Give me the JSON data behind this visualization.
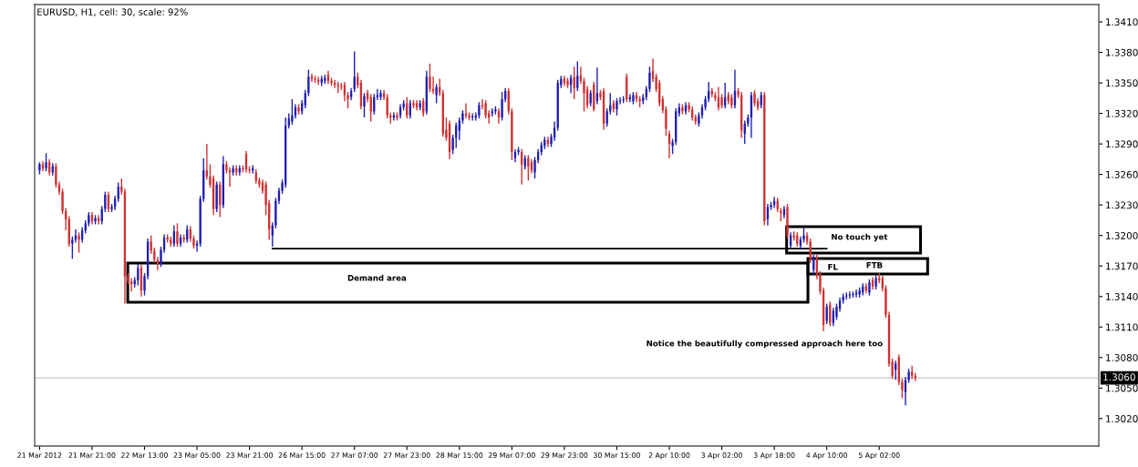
{
  "chart_data": {
    "type": "candlestick",
    "title": "EURUSD, H1, cell: 30, scale: 92%",
    "categories": [
      "21 Mar 2012",
      null,
      null,
      null,
      null,
      null,
      null,
      null,
      null,
      null,
      null,
      null,
      null,
      null,
      null,
      null,
      "21 Mar 21:00",
      null,
      null,
      null,
      null,
      null,
      null,
      null,
      null,
      null,
      null,
      null,
      null,
      null,
      null,
      null,
      "22 Mar 13:00",
      null,
      null,
      null,
      null,
      null,
      null,
      null,
      null,
      null,
      null,
      null,
      null,
      null,
      null,
      null,
      "23 Mar 05:00",
      null,
      null,
      null,
      null,
      null,
      null,
      null,
      null,
      null,
      null,
      null,
      null,
      null,
      null,
      null,
      "23 Mar 21:00",
      null,
      null,
      null,
      null,
      null,
      null,
      null,
      null,
      null,
      null,
      null,
      null,
      null,
      null,
      null,
      "26 Mar 15:00",
      null,
      null,
      null,
      null,
      null,
      null,
      null,
      null,
      null,
      null,
      null,
      null,
      null,
      null,
      null,
      "27 Mar 07:00",
      null,
      null,
      null,
      null,
      null,
      null,
      null,
      null,
      null,
      null,
      null,
      null,
      null,
      null,
      null,
      "27 Mar 23:00",
      null,
      null,
      null,
      null,
      null,
      null,
      null,
      null,
      null,
      null,
      null,
      null,
      null,
      null,
      null,
      "28 Mar 15:00",
      null,
      null,
      null,
      null,
      null,
      null,
      null,
      null,
      null,
      null,
      null,
      null,
      null,
      null,
      null,
      "29 Mar 07:00",
      null,
      null,
      null,
      null,
      null,
      null,
      null,
      null,
      null,
      null,
      null,
      null,
      null,
      null,
      null,
      "29 Mar 23:00",
      null,
      null,
      null,
      null,
      null,
      null,
      null,
      null,
      null,
      null,
      null,
      null,
      null,
      null,
      null,
      "30 Mar 15:00",
      null,
      null,
      null,
      null,
      null,
      null,
      null,
      null,
      null,
      null,
      null,
      null,
      null,
      null,
      null,
      "2 Apr 10:00",
      null,
      null,
      null,
      null,
      null,
      null,
      null,
      null,
      null,
      null,
      null,
      null,
      null,
      null,
      null,
      "3 Apr 02:00",
      null,
      null,
      null,
      null,
      null,
      null,
      null,
      null,
      null,
      null,
      null,
      null,
      null,
      null,
      null,
      "3 Apr 18:00",
      null,
      null,
      null,
      null,
      null,
      null,
      null,
      null,
      null,
      null,
      null,
      null,
      null,
      null,
      null,
      "4 Apr 10:00",
      null,
      null,
      null,
      null,
      null,
      null,
      null,
      null,
      null,
      null,
      null,
      null,
      null,
      null,
      null,
      "5 Apr 02:00",
      null,
      null,
      null,
      null,
      null,
      null,
      null,
      null,
      null,
      null,
      null
    ],
    "ohlc": [
      [
        1.3264,
        1.3272,
        1.326,
        1.327
      ],
      [
        1.327,
        1.3273,
        1.3263,
        1.3266
      ],
      [
        1.3266,
        1.3281,
        1.3263,
        1.3272
      ],
      [
        1.3272,
        1.3275,
        1.3259,
        1.3262
      ],
      [
        1.3262,
        1.3271,
        1.3259,
        1.3268
      ],
      [
        1.3268,
        1.3271,
        1.3247,
        1.325
      ],
      [
        1.325,
        1.3253,
        1.324,
        1.3243
      ],
      [
        1.3243,
        1.3246,
        1.3221,
        1.3224
      ],
      [
        1.3224,
        1.3227,
        1.3205,
        1.3216
      ],
      [
        1.3216,
        1.3219,
        1.3189,
        1.3192
      ],
      [
        1.3192,
        1.3199,
        1.3177,
        1.3196
      ],
      [
        1.3196,
        1.3206,
        1.3193,
        1.32
      ],
      [
        1.32,
        1.3203,
        1.3183,
        1.3196
      ],
      [
        1.3196,
        1.3208,
        1.3193,
        1.3205
      ],
      [
        1.3205,
        1.3215,
        1.3202,
        1.3212
      ],
      [
        1.3212,
        1.3223,
        1.3209,
        1.322
      ],
      [
        1.322,
        1.3223,
        1.3211,
        1.3214
      ],
      [
        1.3214,
        1.322,
        1.3211,
        1.3217
      ],
      [
        1.3217,
        1.322,
        1.3211,
        1.3214
      ],
      [
        1.3214,
        1.3229,
        1.3211,
        1.3226
      ],
      [
        1.3226,
        1.3243,
        1.3223,
        1.324
      ],
      [
        1.324,
        1.3243,
        1.3223,
        1.3226
      ],
      [
        1.3226,
        1.3231,
        1.3223,
        1.3228
      ],
      [
        1.3228,
        1.3239,
        1.3225,
        1.3236
      ],
      [
        1.3236,
        1.3252,
        1.3233,
        1.3248
      ],
      [
        1.3248,
        1.3256,
        1.324,
        1.3243
      ],
      [
        1.3243,
        1.3246,
        1.3133,
        1.316
      ],
      [
        1.316,
        1.3163,
        1.3152,
        1.3155
      ],
      [
        1.3155,
        1.3158,
        1.3145,
        1.3152
      ],
      [
        1.3152,
        1.3159,
        1.3149,
        1.3156
      ],
      [
        1.3156,
        1.3172,
        1.3151,
        1.3168
      ],
      [
        1.3168,
        1.3171,
        1.314,
        1.3146
      ],
      [
        1.3146,
        1.3163,
        1.3141,
        1.316
      ],
      [
        1.316,
        1.3197,
        1.3157,
        1.3194
      ],
      [
        1.3194,
        1.32,
        1.3182,
        1.3185
      ],
      [
        1.3185,
        1.3188,
        1.3173,
        1.3176
      ],
      [
        1.3176,
        1.3179,
        1.3166,
        1.3172
      ],
      [
        1.3172,
        1.3189,
        1.3169,
        1.3186
      ],
      [
        1.3186,
        1.3201,
        1.3183,
        1.3198
      ],
      [
        1.3198,
        1.3201,
        1.3193,
        1.3196
      ],
      [
        1.3196,
        1.3199,
        1.3189,
        1.3192
      ],
      [
        1.3192,
        1.321,
        1.3189,
        1.3204
      ],
      [
        1.3204,
        1.3212,
        1.3189,
        1.3192
      ],
      [
        1.3192,
        1.3201,
        1.3189,
        1.3198
      ],
      [
        1.3198,
        1.3201,
        1.3193,
        1.3196
      ],
      [
        1.3196,
        1.321,
        1.3193,
        1.3206
      ],
      [
        1.3206,
        1.3209,
        1.3194,
        1.3197
      ],
      [
        1.3197,
        1.32,
        1.3187,
        1.319
      ],
      [
        1.319,
        1.3195,
        1.3184,
        1.3192
      ],
      [
        1.3192,
        1.3239,
        1.3189,
        1.3236
      ],
      [
        1.3236,
        1.3276,
        1.3233,
        1.3264
      ],
      [
        1.3264,
        1.329,
        1.3255,
        1.3258
      ],
      [
        1.3258,
        1.327,
        1.3247,
        1.325
      ],
      [
        1.3256,
        1.3259,
        1.322,
        1.3226
      ],
      [
        1.3226,
        1.3253,
        1.3223,
        1.325
      ],
      [
        1.325,
        1.3253,
        1.3218,
        1.323
      ],
      [
        1.323,
        1.3278,
        1.3227,
        1.327
      ],
      [
        1.327,
        1.3273,
        1.3261,
        1.3264
      ],
      [
        1.3264,
        1.3267,
        1.3248,
        1.3262
      ],
      [
        1.3262,
        1.3269,
        1.3259,
        1.3266
      ],
      [
        1.3266,
        1.3269,
        1.3259,
        1.3262
      ],
      [
        1.3262,
        1.3269,
        1.3259,
        1.3266
      ],
      [
        1.3266,
        1.3269,
        1.3262,
        1.3265
      ],
      [
        1.328,
        1.3283,
        1.3262,
        1.3265
      ],
      [
        1.3265,
        1.3268,
        1.3261,
        1.3264
      ],
      [
        1.3264,
        1.3269,
        1.3261,
        1.3266
      ],
      [
        1.3262,
        1.3265,
        1.3251,
        1.3254
      ],
      [
        1.3254,
        1.3257,
        1.3247,
        1.325
      ],
      [
        1.3252,
        1.3255,
        1.3241,
        1.3244
      ],
      [
        1.325,
        1.3253,
        1.322,
        1.323
      ],
      [
        1.3232,
        1.3235,
        1.3196,
        1.3206
      ],
      [
        1.32,
        1.3213,
        1.3189,
        1.321
      ],
      [
        1.321,
        1.3237,
        1.3207,
        1.3234
      ],
      [
        1.3234,
        1.3247,
        1.3231,
        1.3244
      ],
      [
        1.3244,
        1.3255,
        1.3241,
        1.3252
      ],
      [
        1.325,
        1.3316,
        1.3247,
        1.3308
      ],
      [
        1.3308,
        1.332,
        1.3305,
        1.3315
      ],
      [
        1.3312,
        1.3334,
        1.3309,
        1.3318
      ],
      [
        1.3318,
        1.3329,
        1.3315,
        1.3326
      ],
      [
        1.3326,
        1.3329,
        1.3319,
        1.3322
      ],
      [
        1.3322,
        1.3333,
        1.3319,
        1.333
      ],
      [
        1.3328,
        1.3343,
        1.3325,
        1.334
      ],
      [
        1.334,
        1.3363,
        1.3337,
        1.3356
      ],
      [
        1.3356,
        1.3359,
        1.3351,
        1.3354
      ],
      [
        1.3354,
        1.3357,
        1.335,
        1.3353
      ],
      [
        1.3353,
        1.3356,
        1.3348,
        1.3351
      ],
      [
        1.335,
        1.3357,
        1.3347,
        1.3354
      ],
      [
        1.3352,
        1.3358,
        1.3349,
        1.3355
      ],
      [
        1.3358,
        1.3362,
        1.3349,
        1.3352
      ],
      [
        1.3352,
        1.3355,
        1.3347,
        1.335
      ],
      [
        1.335,
        1.3353,
        1.3345,
        1.3348
      ],
      [
        1.3348,
        1.3351,
        1.334,
        1.3347
      ],
      [
        1.3347,
        1.335,
        1.3343,
        1.3346
      ],
      [
        1.3348,
        1.3351,
        1.3332,
        1.3338
      ],
      [
        1.3338,
        1.3341,
        1.3325,
        1.3334
      ],
      [
        1.3336,
        1.3345,
        1.3333,
        1.3342
      ],
      [
        1.3344,
        1.3381,
        1.3341,
        1.3356
      ],
      [
        1.3356,
        1.336,
        1.3345,
        1.3348
      ],
      [
        1.335,
        1.3353,
        1.3324,
        1.3327
      ],
      [
        1.3327,
        1.334,
        1.3316,
        1.3337
      ],
      [
        1.334,
        1.3343,
        1.3331,
        1.3334
      ],
      [
        1.3336,
        1.3339,
        1.3312,
        1.3322
      ],
      [
        1.3322,
        1.3339,
        1.3319,
        1.3336
      ],
      [
        1.3336,
        1.3344,
        1.3333,
        1.3338
      ],
      [
        1.3336,
        1.3343,
        1.3333,
        1.334
      ],
      [
        1.334,
        1.3343,
        1.3333,
        1.3336
      ],
      [
        1.3336,
        1.3339,
        1.3315,
        1.3318
      ],
      [
        1.3318,
        1.3321,
        1.331,
        1.3316
      ],
      [
        1.3316,
        1.3321,
        1.3313,
        1.3318
      ],
      [
        1.3318,
        1.3321,
        1.3313,
        1.3316
      ],
      [
        1.3318,
        1.3329,
        1.3315,
        1.3326
      ],
      [
        1.3326,
        1.3333,
        1.3323,
        1.333
      ],
      [
        1.333,
        1.3336,
        1.3315,
        1.3318
      ],
      [
        1.3318,
        1.3333,
        1.3315,
        1.333
      ],
      [
        1.333,
        1.3333,
        1.3325,
        1.3328
      ],
      [
        1.333,
        1.3333,
        1.3323,
        1.3326
      ],
      [
        1.3326,
        1.3333,
        1.3323,
        1.333
      ],
      [
        1.3332,
        1.3335,
        1.3317,
        1.332
      ],
      [
        1.3322,
        1.3362,
        1.3319,
        1.3356
      ],
      [
        1.3356,
        1.3369,
        1.3341,
        1.3344
      ],
      [
        1.3344,
        1.3356,
        1.3339,
        1.3342
      ],
      [
        1.3338,
        1.3349,
        1.333,
        1.3346
      ],
      [
        1.3346,
        1.3354,
        1.3337,
        1.334
      ],
      [
        1.334,
        1.3343,
        1.3297,
        1.33
      ],
      [
        1.3304,
        1.3316,
        1.3293,
        1.3296
      ],
      [
        1.331,
        1.3313,
        1.3275,
        1.3282
      ],
      [
        1.3284,
        1.3299,
        1.328,
        1.3296
      ],
      [
        1.3296,
        1.3311,
        1.3286,
        1.3308
      ],
      [
        1.3303,
        1.3316,
        1.3294,
        1.3313
      ],
      [
        1.3313,
        1.3323,
        1.331,
        1.332
      ],
      [
        1.332,
        1.333,
        1.3315,
        1.3318
      ],
      [
        1.3318,
        1.3321,
        1.3313,
        1.3316
      ],
      [
        1.3316,
        1.332,
        1.3313,
        1.3317
      ],
      [
        1.3316,
        1.3321,
        1.3313,
        1.3318
      ],
      [
        1.3318,
        1.3331,
        1.3315,
        1.3328
      ],
      [
        1.3328,
        1.3334,
        1.3324,
        1.3327
      ],
      [
        1.333,
        1.3333,
        1.3315,
        1.3318
      ],
      [
        1.332,
        1.3323,
        1.331,
        1.3316
      ],
      [
        1.332,
        1.3325,
        1.3317,
        1.3322
      ],
      [
        1.3322,
        1.3327,
        1.3319,
        1.3324
      ],
      [
        1.3322,
        1.3325,
        1.331,
        1.3316
      ],
      [
        1.3316,
        1.3341,
        1.3313,
        1.3334
      ],
      [
        1.3334,
        1.3345,
        1.3331,
        1.3342
      ],
      [
        1.3342,
        1.3345,
        1.3319,
        1.3322
      ],
      [
        1.3322,
        1.3325,
        1.3274,
        1.3282
      ],
      [
        1.3276,
        1.3285,
        1.3272,
        1.3282
      ],
      [
        1.3282,
        1.3287,
        1.3279,
        1.3284
      ],
      [
        1.3282,
        1.3285,
        1.325,
        1.327
      ],
      [
        1.3268,
        1.3279,
        1.3265,
        1.3276
      ],
      [
        1.3276,
        1.3279,
        1.3254,
        1.3268
      ],
      [
        1.3272,
        1.3275,
        1.3261,
        1.3264
      ],
      [
        1.3262,
        1.3277,
        1.3256,
        1.3274
      ],
      [
        1.3274,
        1.3285,
        1.3271,
        1.3282
      ],
      [
        1.3282,
        1.3292,
        1.3279,
        1.3289
      ],
      [
        1.3288,
        1.3297,
        1.3285,
        1.3294
      ],
      [
        1.3294,
        1.3297,
        1.3287,
        1.329
      ],
      [
        1.329,
        1.33,
        1.3287,
        1.3297
      ],
      [
        1.3296,
        1.3312,
        1.3293,
        1.3306
      ],
      [
        1.3306,
        1.3353,
        1.3303,
        1.335
      ],
      [
        1.3348,
        1.3357,
        1.3345,
        1.3354
      ],
      [
        1.3354,
        1.3357,
        1.3347,
        1.335
      ],
      [
        1.3352,
        1.3355,
        1.3345,
        1.3348
      ],
      [
        1.3348,
        1.3358,
        1.334,
        1.3355
      ],
      [
        1.3356,
        1.3366,
        1.3334,
        1.3345
      ],
      [
        1.3345,
        1.3371,
        1.3342,
        1.3357
      ],
      [
        1.3357,
        1.3366,
        1.3349,
        1.3352
      ],
      [
        1.3352,
        1.3355,
        1.3322,
        1.334
      ],
      [
        1.3344,
        1.3347,
        1.3325,
        1.3328
      ],
      [
        1.333,
        1.3343,
        1.3327,
        1.334
      ],
      [
        1.3348,
        1.3351,
        1.3322,
        1.3324
      ],
      [
        1.3332,
        1.3365,
        1.3329,
        1.334
      ],
      [
        1.334,
        1.3343,
        1.3333,
        1.3336
      ],
      [
        1.3342,
        1.3345,
        1.3304,
        1.331
      ],
      [
        1.331,
        1.3325,
        1.3307,
        1.3322
      ],
      [
        1.3322,
        1.334,
        1.3319,
        1.3328
      ],
      [
        1.333,
        1.3333,
        1.3321,
        1.3324
      ],
      [
        1.3324,
        1.3335,
        1.3318,
        1.3332
      ],
      [
        1.3332,
        1.3336,
        1.3329,
        1.3333
      ],
      [
        1.3333,
        1.3337,
        1.333,
        1.3334
      ],
      [
        1.3356,
        1.3359,
        1.3331,
        1.3334
      ],
      [
        1.3334,
        1.3339,
        1.3331,
        1.3336
      ],
      [
        1.3332,
        1.3341,
        1.3329,
        1.3338
      ],
      [
        1.3338,
        1.3341,
        1.3331,
        1.3334
      ],
      [
        1.3334,
        1.3337,
        1.3326,
        1.3332
      ],
      [
        1.3332,
        1.3339,
        1.3329,
        1.3336
      ],
      [
        1.3336,
        1.3347,
        1.3333,
        1.3344
      ],
      [
        1.3344,
        1.3366,
        1.3341,
        1.336
      ],
      [
        1.3362,
        1.3374,
        1.3351,
        1.3354
      ],
      [
        1.3356,
        1.3359,
        1.3341,
        1.3344
      ],
      [
        1.335,
        1.3353,
        1.3327,
        1.333
      ],
      [
        1.3334,
        1.3337,
        1.332,
        1.3323
      ],
      [
        1.3324,
        1.3327,
        1.3298,
        1.3305
      ],
      [
        1.33,
        1.3303,
        1.3276,
        1.329
      ],
      [
        1.3288,
        1.3295,
        1.328,
        1.3292
      ],
      [
        1.3292,
        1.3325,
        1.3289,
        1.3322
      ],
      [
        1.332,
        1.333,
        1.3317,
        1.3326
      ],
      [
        1.3326,
        1.3329,
        1.3319,
        1.3322
      ],
      [
        1.3322,
        1.3331,
        1.3319,
        1.3328
      ],
      [
        1.3328,
        1.3331,
        1.3321,
        1.3324
      ],
      [
        1.3324,
        1.3327,
        1.3313,
        1.3316
      ],
      [
        1.3316,
        1.3319,
        1.3309,
        1.3312
      ],
      [
        1.331,
        1.3321,
        1.3307,
        1.3318
      ],
      [
        1.3318,
        1.3329,
        1.3315,
        1.3326
      ],
      [
        1.3326,
        1.3337,
        1.3323,
        1.3334
      ],
      [
        1.3334,
        1.3351,
        1.3331,
        1.3342
      ],
      [
        1.3342,
        1.3345,
        1.3336,
        1.3339
      ],
      [
        1.3338,
        1.3341,
        1.3332,
        1.3335
      ],
      [
        1.3336,
        1.3346,
        1.3323,
        1.3326
      ],
      [
        1.3336,
        1.3339,
        1.3325,
        1.3328
      ],
      [
        1.3328,
        1.335,
        1.3325,
        1.3336
      ],
      [
        1.3338,
        1.3341,
        1.3329,
        1.3332
      ],
      [
        1.3336,
        1.3339,
        1.3325,
        1.3328
      ],
      [
        1.3328,
        1.3363,
        1.3325,
        1.3342
      ],
      [
        1.3342,
        1.3345,
        1.3335,
        1.3338
      ],
      [
        1.3338,
        1.3341,
        1.3296,
        1.3303
      ],
      [
        1.33,
        1.3313,
        1.329,
        1.331
      ],
      [
        1.331,
        1.3319,
        1.3307,
        1.3316
      ],
      [
        1.3316,
        1.3341,
        1.3296,
        1.3338
      ],
      [
        1.334,
        1.3343,
        1.3327,
        1.333
      ],
      [
        1.3332,
        1.3335,
        1.3323,
        1.3326
      ],
      [
        1.3328,
        1.3341,
        1.3325,
        1.3338
      ],
      [
        1.3338,
        1.3341,
        1.321,
        1.3214
      ],
      [
        1.3216,
        1.3231,
        1.321,
        1.3228
      ],
      [
        1.3228,
        1.3233,
        1.3225,
        1.323
      ],
      [
        1.323,
        1.3238,
        1.3227,
        1.3234
      ],
      [
        1.3234,
        1.3237,
        1.3223,
        1.3226
      ],
      [
        1.3224,
        1.3227,
        1.3214,
        1.3222
      ],
      [
        1.322,
        1.3229,
        1.3217,
        1.3226
      ],
      [
        1.3228,
        1.3231,
        1.3197,
        1.32
      ],
      [
        1.319,
        1.3203,
        1.3188,
        1.32
      ],
      [
        1.32,
        1.3204,
        1.3195,
        1.3198
      ],
      [
        1.32,
        1.3203,
        1.3189,
        1.3192
      ],
      [
        1.319,
        1.3199,
        1.3186,
        1.3196
      ],
      [
        1.3196,
        1.3208,
        1.3193,
        1.32
      ],
      [
        1.32,
        1.3203,
        1.3191,
        1.3194
      ],
      [
        1.3194,
        1.3197,
        1.3173,
        1.3176
      ],
      [
        1.3166,
        1.3181,
        1.3162,
        1.3178
      ],
      [
        1.3178,
        1.3181,
        1.3157,
        1.316
      ],
      [
        1.3162,
        1.3165,
        1.3142,
        1.3145
      ],
      [
        1.3146,
        1.3149,
        1.3106,
        1.3112
      ],
      [
        1.3116,
        1.3133,
        1.3113,
        1.313
      ],
      [
        1.3132,
        1.3135,
        1.3111,
        1.3114
      ],
      [
        1.3114,
        1.3129,
        1.3111,
        1.3126
      ],
      [
        1.312,
        1.3133,
        1.3117,
        1.313
      ],
      [
        1.3128,
        1.3139,
        1.3125,
        1.3136
      ],
      [
        1.3136,
        1.3143,
        1.3133,
        1.314
      ],
      [
        1.314,
        1.3144,
        1.3137,
        1.3141
      ],
      [
        1.3141,
        1.3145,
        1.3138,
        1.3142
      ],
      [
        1.3142,
        1.3145,
        1.3139,
        1.3142
      ],
      [
        1.3142,
        1.3147,
        1.3139,
        1.3144
      ],
      [
        1.3142,
        1.3149,
        1.3139,
        1.3146
      ],
      [
        1.3144,
        1.3153,
        1.3141,
        1.315
      ],
      [
        1.315,
        1.3153,
        1.3143,
        1.3146
      ],
      [
        1.3144,
        1.3157,
        1.3141,
        1.3154
      ],
      [
        1.3156,
        1.3159,
        1.3147,
        1.315
      ],
      [
        1.315,
        1.3161,
        1.3147,
        1.3158
      ],
      [
        1.3158,
        1.3163,
        1.3153,
        1.3156
      ],
      [
        1.3158,
        1.3161,
        1.3145,
        1.3148
      ],
      [
        1.3148,
        1.3151,
        1.3119,
        1.3122
      ],
      [
        1.3122,
        1.3125,
        1.3071,
        1.3074
      ],
      [
        1.3076,
        1.3079,
        1.3059,
        1.3062
      ],
      [
        1.3068,
        1.3077,
        1.3058,
        1.3074
      ],
      [
        1.308,
        1.3083,
        1.3053,
        1.3056
      ],
      [
        1.3056,
        1.3059,
        1.304,
        1.3048
      ],
      [
        1.3046,
        1.3061,
        1.3033,
        1.3058
      ],
      [
        1.3058,
        1.3069,
        1.3055,
        1.3066
      ],
      [
        1.3066,
        1.3072,
        1.3059,
        1.3062
      ],
      [
        1.3062,
        1.3065,
        1.3057,
        1.306
      ]
    ],
    "colors": [
      "#2020b0",
      "#d03030",
      "#2020b0",
      "#d03030",
      "#2020b0",
      "#d03030",
      "#d03030",
      "#d03030",
      "#d03030",
      "#d03030",
      "#2020b0",
      "#2020b0",
      "#d03030",
      "#2020b0",
      "#2020b0",
      "#2020b0",
      "#d03030",
      "#2020b0",
      "#d03030",
      "#2020b0",
      "#2020b0",
      "#d03030",
      "#2020b0",
      "#2020b0",
      "#2020b0",
      "#d03030",
      "#d03030",
      "#d03030",
      "#d03030",
      "#2020b0",
      "#2020b0",
      "#d03030",
      "#2020b0",
      "#2020b0",
      "#d03030",
      "#d03030",
      "#d03030",
      "#2020b0",
      "#2020b0",
      "#d03030",
      "#d03030",
      "#2020b0",
      "#d03030",
      "#2020b0",
      "#d03030",
      "#2020b0",
      "#d03030",
      "#d03030",
      "#2020b0",
      "#2020b0",
      "#2020b0",
      "#d03030",
      "#d03030",
      "#d03030",
      "#2020b0",
      "#d03030",
      "#2020b0",
      "#d03030",
      "#d03030",
      "#2020b0",
      "#d03030",
      "#2020b0",
      "#d03030",
      "#d03030",
      "#d03030",
      "#2020b0",
      "#d03030",
      "#d03030",
      "#d03030",
      "#d03030",
      "#d03030",
      "#2020b0",
      "#2020b0",
      "#2020b0",
      "#2020b0",
      "#2020b0",
      "#2020b0",
      "#2020b0",
      "#2020b0",
      "#d03030",
      "#2020b0",
      "#2020b0",
      "#2020b0",
      "#d03030",
      "#d03030",
      "#d03030",
      "#2020b0",
      "#2020b0",
      "#d03030",
      "#d03030",
      "#d03030",
      "#d03030",
      "#d03030",
      "#d03030",
      "#d03030",
      "#2020b0",
      "#2020b0",
      "#d03030",
      "#d03030",
      "#2020b0",
      "#d03030",
      "#d03030",
      "#2020b0",
      "#2020b0",
      "#2020b0",
      "#d03030",
      "#d03030",
      "#d03030",
      "#2020b0",
      "#d03030",
      "#2020b0",
      "#2020b0",
      "#d03030",
      "#2020b0",
      "#d03030",
      "#d03030",
      "#2020b0",
      "#d03030",
      "#2020b0",
      "#d03030",
      "#d03030",
      "#2020b0",
      "#d03030",
      "#d03030",
      "#d03030",
      "#d03030",
      "#2020b0",
      "#2020b0",
      "#2020b0",
      "#2020b0",
      "#d03030",
      "#d03030",
      "#2020b0",
      "#2020b0",
      "#2020b0",
      "#d03030",
      "#d03030",
      "#d03030",
      "#2020b0",
      "#2020b0",
      "#d03030",
      "#2020b0",
      "#2020b0",
      "#d03030",
      "#d03030",
      "#2020b0",
      "#2020b0",
      "#d03030",
      "#2020b0",
      "#d03030",
      "#d03030",
      "#2020b0",
      "#2020b0",
      "#2020b0",
      "#2020b0",
      "#d03030",
      "#2020b0",
      "#2020b0",
      "#2020b0",
      "#2020b0",
      "#d03030",
      "#d03030",
      "#2020b0",
      "#d03030",
      "#2020b0",
      "#d03030",
      "#d03030",
      "#d03030",
      "#2020b0",
      "#d03030",
      "#2020b0",
      "#d03030",
      "#d03030",
      "#2020b0",
      "#2020b0",
      "#d03030",
      "#2020b0",
      "#2020b0",
      "#2020b0",
      "#d03030",
      "#2020b0",
      "#2020b0",
      "#d03030",
      "#d03030",
      "#2020b0",
      "#2020b0",
      "#2020b0",
      "#d03030",
      "#d03030",
      "#d03030",
      "#d03030",
      "#d03030",
      "#d03030",
      "#2020b0",
      "#2020b0",
      "#2020b0",
      "#d03030",
      "#2020b0",
      "#d03030",
      "#d03030",
      "#d03030",
      "#2020b0",
      "#2020b0",
      "#2020b0",
      "#2020b0",
      "#d03030",
      "#d03030",
      "#d03030",
      "#d03030",
      "#2020b0",
      "#d03030",
      "#d03030",
      "#2020b0",
      "#d03030",
      "#d03030",
      "#2020b0",
      "#2020b0",
      "#2020b0",
      "#d03030",
      "#d03030",
      "#2020b0",
      "#d03030",
      "#2020b0",
      "#2020b0",
      "#2020b0",
      "#d03030",
      "#d03030",
      "#2020b0",
      "#d03030",
      "#2020b0",
      "#d03030",
      "#d03030",
      "#2020b0",
      "#2020b0",
      "#d03030",
      "#d03030",
      "#2020b0",
      "#d03030",
      "#d03030",
      "#d03030",
      "#2020b0",
      "#d03030",
      "#2020b0",
      "#2020b0",
      "#2020b0",
      "#2020b0",
      "#2020b0",
      "#2020b0",
      "#2020b0",
      "#2020b0",
      "#2020b0",
      "#2020b0",
      "#d03030",
      "#2020b0",
      "#d03030",
      "#2020b0",
      "#d03030",
      "#d03030",
      "#d03030",
      "#d03030",
      "#d03030",
      "#2020b0",
      "#d03030",
      "#d03030",
      "#2020b0",
      "#2020b0",
      "#d03030",
      "#d03030"
    ],
    "series": [
      {
        "type": "line",
        "color": "#000000",
        "values": [
          null,
          null,
          null,
          null,
          null,
          null,
          null,
          null,
          null,
          null,
          null,
          null,
          null,
          null,
          null,
          null,
          null,
          null,
          null,
          null,
          null,
          null,
          null,
          null,
          null,
          null,
          null,
          null,
          null,
          null,
          null,
          null,
          null,
          null,
          null,
          null,
          null,
          null,
          null,
          null,
          null,
          null,
          null,
          null,
          null,
          null,
          null,
          null,
          null,
          null,
          null,
          null,
          null,
          null,
          null,
          null,
          null,
          null,
          null,
          null,
          null,
          null,
          null,
          null,
          null,
          null,
          null,
          null,
          null,
          null,
          null,
          1.3187,
          1.3187,
          1.3187,
          1.3187,
          1.3187,
          1.3187,
          1.3187,
          1.3187,
          1.3187,
          1.3187,
          1.3187,
          1.3187,
          1.3187,
          1.3187,
          1.3187,
          1.3187,
          1.3187,
          1.3187,
          1.3187,
          1.3187,
          1.3187,
          1.3187,
          1.3187,
          1.3187,
          1.3187,
          1.3187,
          1.3187,
          1.3187,
          1.3187,
          1.3187,
          1.3187,
          1.3187,
          1.3187,
          1.3187,
          1.3187,
          1.3187,
          1.3187,
          1.3187,
          1.3187,
          1.3187,
          1.3187,
          1.3187,
          1.3187,
          1.3187,
          1.3187,
          1.3187,
          1.3187,
          1.3187,
          1.3187,
          1.3187,
          1.3187,
          1.3187,
          1.3187,
          1.3187,
          1.3187,
          1.3187,
          1.3187,
          1.3187,
          1.3187,
          1.3187,
          1.3187,
          1.3187,
          1.3187,
          1.3187,
          1.3187,
          1.3187,
          1.3187,
          1.3187,
          1.3187,
          1.3187,
          1.3187,
          1.3187,
          1.3187,
          1.3187,
          1.3187,
          1.3187,
          1.3187,
          1.3187,
          1.3187,
          1.3187,
          1.3187,
          1.3187,
          1.3187,
          1.3187,
          1.3187,
          1.3187,
          1.3187,
          1.3187,
          1.3187,
          1.3187,
          1.3187,
          1.3187,
          1.3187,
          1.3187,
          1.3187,
          1.3187,
          1.3187,
          1.3187,
          1.3187,
          1.3187,
          1.3187,
          1.3187,
          1.3187,
          1.3187,
          1.3187,
          1.3187,
          1.3187,
          1.3187,
          1.3187,
          1.3187,
          1.3187,
          1.3187,
          1.3187,
          1.3187,
          1.3187,
          1.3187,
          1.3187,
          1.3187,
          1.3187,
          1.3187,
          1.3187,
          1.3187,
          1.3187,
          1.3187,
          1.3187,
          1.3187,
          1.3187,
          1.3187,
          1.3187,
          1.3187,
          1.3187,
          1.3187,
          1.3187,
          1.3187,
          1.3187,
          1.3187,
          1.3187,
          1.3187,
          1.3187,
          1.3187,
          1.3187,
          1.3187,
          1.3187,
          1.3187,
          1.3187,
          1.3187,
          1.3187,
          1.3187,
          1.3187,
          1.3187,
          1.3187,
          1.3187,
          1.3187,
          1.3187,
          1.3187,
          1.3187,
          1.3187,
          1.3187,
          1.3187,
          1.3187,
          1.3187,
          1.3187,
          1.3187,
          1.3187,
          1.3187,
          1.3187,
          1.3187,
          1.3187,
          1.3187,
          1.3187,
          null,
          null,
          null,
          null,
          null,
          null,
          null,
          null,
          null,
          null,
          null,
          null,
          null,
          null,
          null,
          null,
          null,
          null,
          null,
          null,
          null,
          null,
          null,
          null,
          null,
          null,
          null
        ]
      }
    ],
    "ylim": [
      1.2993,
      1.3427
    ],
    "yticks": [
      {
        "value": 1.341,
        "label": "1.3410"
      },
      {
        "value": 1.338,
        "label": "1.3380"
      },
      {
        "value": 1.335,
        "label": "1.3350"
      },
      {
        "value": 1.332,
        "label": "1.3320"
      },
      {
        "value": 1.329,
        "label": "1.3290"
      },
      {
        "value": 1.326,
        "label": "1.3260"
      },
      {
        "value": 1.323,
        "label": "1.3230"
      },
      {
        "value": 1.32,
        "label": "1.3200"
      },
      {
        "value": 1.317,
        "label": "1.3170"
      },
      {
        "value": 1.314,
        "label": "1.3140"
      },
      {
        "value": 1.311,
        "label": "1.3110"
      },
      {
        "value": 1.308,
        "label": "1.3080"
      },
      {
        "value": 1.305,
        "label": "1.3050"
      },
      {
        "value": 1.302,
        "label": "1.3020"
      }
    ],
    "ref_lines": [
      {
        "axis": "y",
        "value": 1.306,
        "label": "1.3060",
        "color": "#c8c8c8"
      }
    ],
    "annotations": [
      "Demand area",
      "No touch yet",
      "FL",
      "FTB",
      "Notice the beautifully compressed approach here too"
    ]
  }
}
